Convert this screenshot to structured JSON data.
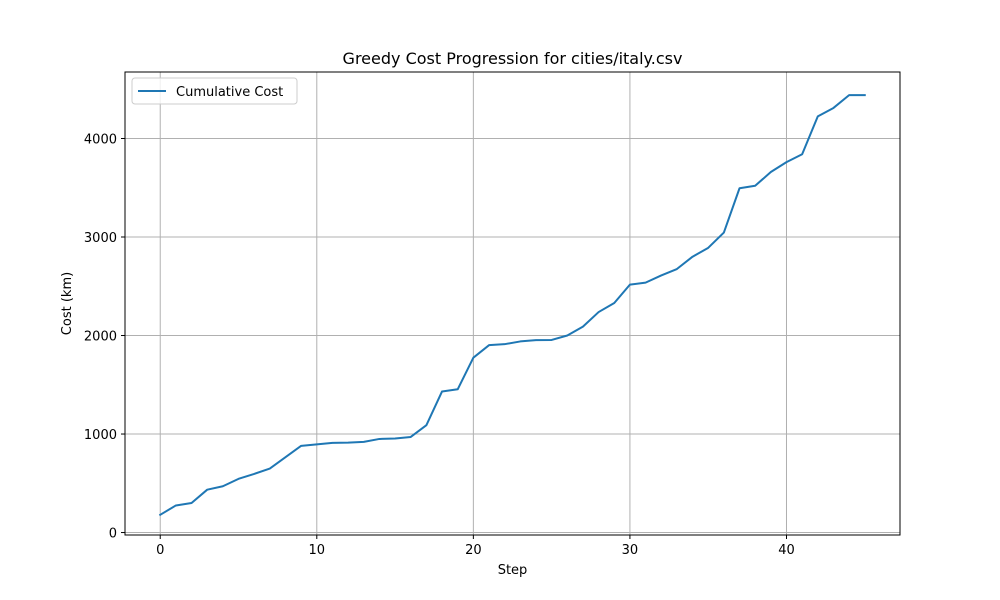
{
  "chart_data": {
    "type": "line",
    "title": "Greedy Cost Progression for cities/italy.csv",
    "xlabel": "Step",
    "ylabel": "Cost (km)",
    "xlim": [
      -2.25,
      47.25
    ],
    "ylim": [
      -25,
      4675
    ],
    "xticks": [
      0,
      10,
      20,
      30,
      40
    ],
    "yticks": [
      0,
      1000,
      2000,
      3000,
      4000
    ],
    "grid": true,
    "legend": {
      "position": "top-left"
    },
    "series": [
      {
        "name": "Cumulative Cost",
        "color": "#1f77b4",
        "x": [
          0,
          1,
          2,
          3,
          4,
          5,
          6,
          7,
          8,
          9,
          10,
          11,
          12,
          13,
          14,
          15,
          16,
          17,
          18,
          19,
          20,
          21,
          22,
          23,
          24,
          25,
          26,
          27,
          28,
          29,
          30,
          31,
          32,
          33,
          34,
          35,
          36,
          37,
          38,
          39,
          40,
          41,
          42,
          43,
          44,
          45
        ],
        "y": [
          180,
          275,
          300,
          435,
          470,
          545,
          595,
          650,
          765,
          880,
          895,
          910,
          913,
          920,
          950,
          955,
          970,
          1090,
          1432,
          1454,
          1775,
          1902,
          1912,
          1940,
          1953,
          1955,
          2000,
          2090,
          2238,
          2330,
          2517,
          2537,
          2610,
          2675,
          2800,
          2890,
          3045,
          3495,
          3520,
          3660,
          3760,
          3840,
          4225,
          4310,
          4440,
          4440
        ]
      }
    ]
  }
}
